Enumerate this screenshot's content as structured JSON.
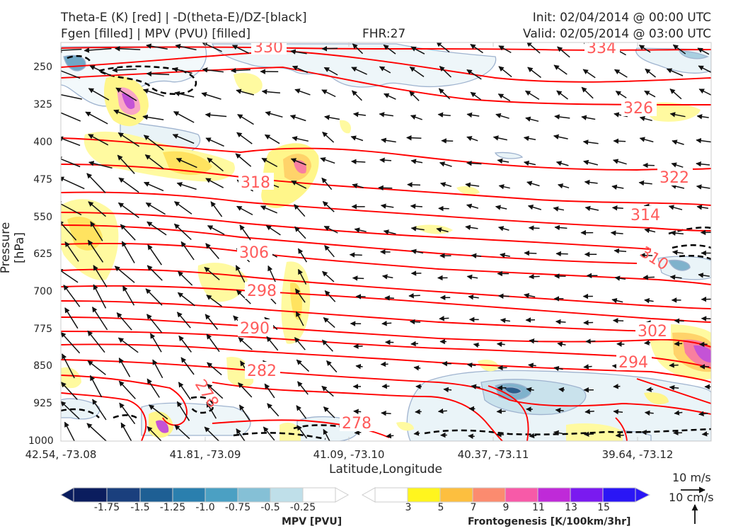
{
  "header": {
    "title_line1": "Theta-E (K) [red] | -D(theta-E)/DZ-[black]",
    "title_line2": "Fgen [filled] | MPV (PVU) [filled]",
    "fhr": "FHR:27",
    "init": "Init: 02/04/2014 @ 00:00 UTC",
    "valid": "Valid: 02/05/2014 @ 03:00 UTC"
  },
  "chart_data": {
    "type": "cross-section",
    "xlabel": "Latitude,Longitude",
    "ylabel": "Pressure [hPa]",
    "y_axis_inverted": true,
    "ylim": [
      1000,
      210
    ],
    "yticks": [
      "250",
      "325",
      "400",
      "475",
      "550",
      "625",
      "700",
      "775",
      "850",
      "925",
      "1000"
    ],
    "xticks": [
      "42.54, -73.08",
      "41.81, -73.09",
      "41.09, -73.10",
      "40.37, -73.11",
      "39.64, -73.12"
    ],
    "theta_e_contour_labels": [
      "330",
      "334",
      "326",
      "318",
      "322",
      "314",
      "306",
      "310",
      "298",
      "302",
      "290",
      "294",
      "282",
      "278",
      "278"
    ],
    "theta_e_color": "#ff0000",
    "label_color": "#ff5a5a",
    "wind_reference": {
      "horizontal": "10 m/s",
      "vertical": "10 cm/s"
    },
    "mpv_colorbar": {
      "label": "MPV [PVU]",
      "ticks": [
        "-1.75",
        "-1.5",
        "-1.25",
        "-1.0",
        "-0.75",
        "-0.5",
        "-0.25"
      ],
      "colors": [
        "#0b1d5e",
        "#1a3f7d",
        "#1e5f94",
        "#2a7fae",
        "#4ba0c3",
        "#85c0d6",
        "#bfdfe9",
        "#ffffff"
      ]
    },
    "fgen_colorbar": {
      "label": "Frontogenesis [K/100km/3hr]",
      "ticks": [
        "3",
        "5",
        "7",
        "9",
        "11",
        "13",
        "15"
      ],
      "colors": [
        "#ffffff",
        "#fff51e",
        "#fdbf3f",
        "#fb8b6f",
        "#f75aa8",
        "#bf2ad8",
        "#7a1af0",
        "#2a16f5"
      ]
    }
  }
}
